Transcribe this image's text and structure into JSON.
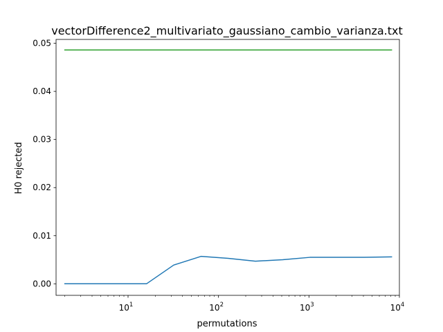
{
  "chart_data": {
    "type": "line",
    "title": "vectorDifference2_multivariato_gaussiano_cambio_varianza.txt",
    "xlabel": "permutations",
    "ylabel": "H0 rejected",
    "xscale": "log",
    "xlim": [
      1.6,
      10000
    ],
    "ylim": [
      -0.0024,
      0.0508
    ],
    "x_ticks": [
      {
        "base": "10",
        "exp": "1",
        "value": 10
      },
      {
        "base": "10",
        "exp": "2",
        "value": 100
      },
      {
        "base": "10",
        "exp": "3",
        "value": 1000
      },
      {
        "base": "10",
        "exp": "4",
        "value": 10000
      }
    ],
    "y_ticks": [
      {
        "label": "0.00",
        "value": 0.0
      },
      {
        "label": "0.01",
        "value": 0.01
      },
      {
        "label": "0.02",
        "value": 0.02
      },
      {
        "label": "0.03",
        "value": 0.03
      },
      {
        "label": "0.04",
        "value": 0.04
      },
      {
        "label": "0.05",
        "value": 0.05
      }
    ],
    "grid": false,
    "legend": "none",
    "series": [
      {
        "color": "#1f77b4",
        "x": [
          2,
          4,
          8,
          16,
          32,
          64,
          128,
          256,
          512,
          1024,
          2048,
          4096,
          8192
        ],
        "y": [
          0.0,
          0.0,
          0.0,
          0.0,
          0.0039,
          0.0057,
          0.0053,
          0.0047,
          0.005,
          0.0055,
          0.0055,
          0.0055,
          0.0056
        ]
      },
      {
        "color": "#2ca02c",
        "x": [
          2,
          8192
        ],
        "y": [
          0.0486,
          0.0486
        ]
      }
    ]
  }
}
